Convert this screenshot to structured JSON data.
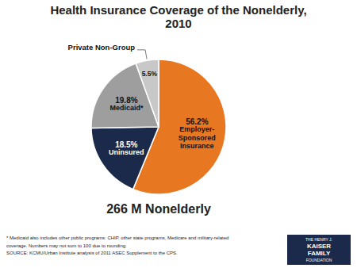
{
  "chart_data": {
    "type": "pie",
    "title": "Health Insurance Coverage of the Nonelderly,\n2010",
    "subtitle": "266 M Nonelderly",
    "categories": [
      "Employer-\nSponsored\nInsurance",
      "Uninsured",
      "Medicaid*",
      "Private Non-Group"
    ],
    "values": [
      56.2,
      18.5,
      19.8,
      5.5
    ],
    "value_labels": [
      "56.2%",
      "18.5%",
      "19.8%",
      "5.5%"
    ],
    "colors": [
      "#E87722",
      "#1B2A4A",
      "#9E9E9E",
      "#C8C8C8"
    ],
    "data_labels": true,
    "footnotes": [
      "* Medicaid also includes other public programs: CHIP, other state programs, Medicare and military-related",
      "coverage. Numbers may not sum to 100 due to rounding.",
      "SOURCE: KCMU/Urban Institute analysis of 2011 ASEC Supplement to the CPS."
    ],
    "logo_text": [
      "THE HENRY J.",
      "KAISER",
      "FAMILY",
      "FOUNDATION"
    ]
  }
}
